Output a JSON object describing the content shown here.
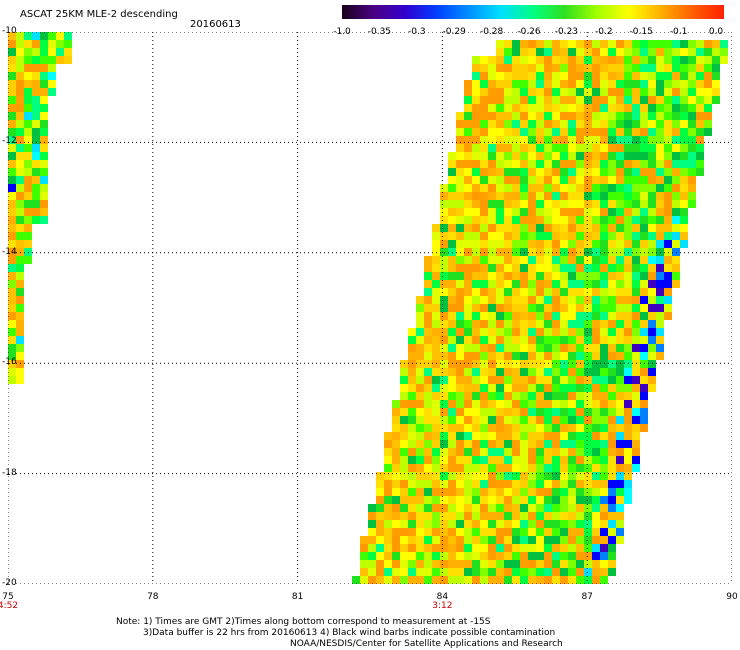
{
  "header": {
    "title": "ASCAT 25KM MLE-2 descending",
    "date": "20160613"
  },
  "colorbar": {
    "labels": [
      "-1.0",
      "-0.35",
      "-0.3",
      "-0.29",
      "-0.28",
      "-0.26",
      "-0.23",
      "-0.2",
      "-0.15",
      "-0.1",
      "0.0"
    ],
    "colors": [
      "#1a001a",
      "#4b0082",
      "#3000d0",
      "#0040ff",
      "#0090ff",
      "#00e0ff",
      "#00ff80",
      "#30e020",
      "#a0ff00",
      "#ffff00",
      "#ffb000",
      "#ff6000",
      "#ff2000"
    ]
  },
  "map": {
    "lat_labels": [
      "-10",
      "-12",
      "-14",
      "-16",
      "-18",
      "-20"
    ],
    "lon_labels": [
      "75",
      "78",
      "81",
      "84",
      "87",
      "90"
    ],
    "time_labels": [
      {
        "lon": "75",
        "text": "4:52"
      },
      {
        "lon": "84",
        "text": "3:12"
      }
    ]
  },
  "notes": {
    "line1": "Note: 1) Times are GMT 2)Times along bottom correspond to measurement at -15S",
    "line2": "3)Data buffer is 22 hrs from 20160613 4) Black wind barbs indicate possible contamination",
    "line3": "NOAA/NESDIS/Center for Satellite Applications and Research"
  }
}
